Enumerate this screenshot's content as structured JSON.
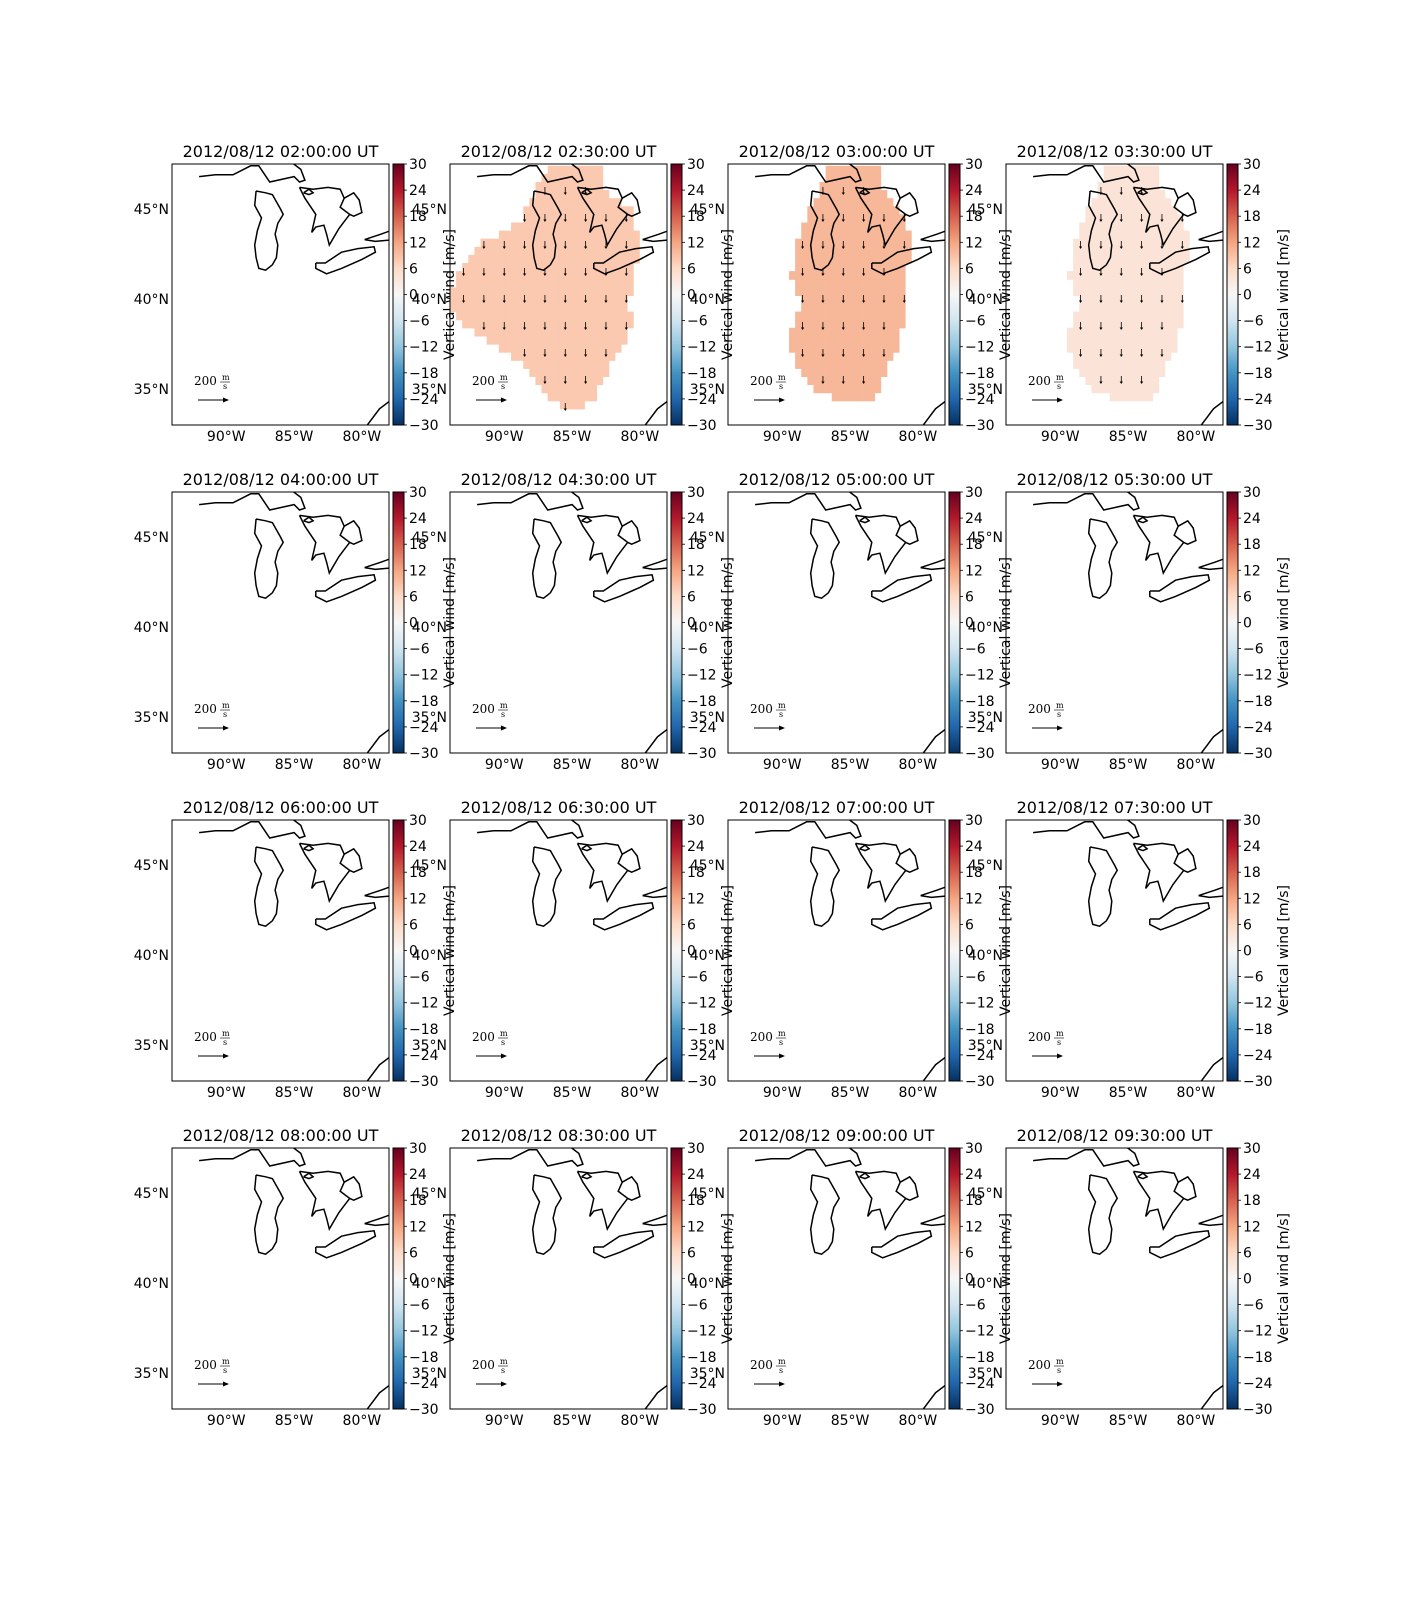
{
  "figure": {
    "colorbar_label": "Vertical wind [m/s]",
    "colorbar_ticks": [
      "30",
      "24",
      "18",
      "12",
      "6",
      "0",
      "−6",
      "−12",
      "−18",
      "−24",
      "−30"
    ],
    "lon_ticks": [
      "90°W",
      "85°W",
      "80°W"
    ],
    "lat_ticks": [
      "45°N",
      "40°N",
      "35°N"
    ],
    "quiver_key": {
      "value": "200",
      "unit_numerator": "m",
      "unit_denominator": "s"
    },
    "colormap": {
      "neg_end": "#053061",
      "mid": "#f7f7f7",
      "pos_end": "#67001f"
    },
    "vmin": -30,
    "vmax": 30
  },
  "chart_data": [
    {
      "type": "heatmap",
      "title": "2012/08/12 02:00:00 UT",
      "region": null,
      "value": null,
      "vertical_wind_arrows": false
    },
    {
      "type": "heatmap",
      "title": "2012/08/12 02:30:00 UT",
      "region": "large",
      "value": 8,
      "vertical_wind_arrows": true
    },
    {
      "type": "heatmap",
      "title": "2012/08/12 03:00:00 UT",
      "region": "medium",
      "value": 10,
      "vertical_wind_arrows": true
    },
    {
      "type": "heatmap",
      "title": "2012/08/12 03:30:00 UT",
      "region": "medium",
      "value": 4,
      "vertical_wind_arrows": true
    },
    {
      "type": "heatmap",
      "title": "2012/08/12 04:00:00 UT",
      "region": null,
      "value": null,
      "vertical_wind_arrows": false
    },
    {
      "type": "heatmap",
      "title": "2012/08/12 04:30:00 UT",
      "region": null,
      "value": null,
      "vertical_wind_arrows": false
    },
    {
      "type": "heatmap",
      "title": "2012/08/12 05:00:00 UT",
      "region": null,
      "value": null,
      "vertical_wind_arrows": false
    },
    {
      "type": "heatmap",
      "title": "2012/08/12 05:30:00 UT",
      "region": null,
      "value": null,
      "vertical_wind_arrows": false
    },
    {
      "type": "heatmap",
      "title": "2012/08/12 06:00:00 UT",
      "region": null,
      "value": null,
      "vertical_wind_arrows": false
    },
    {
      "type": "heatmap",
      "title": "2012/08/12 06:30:00 UT",
      "region": null,
      "value": null,
      "vertical_wind_arrows": false
    },
    {
      "type": "heatmap",
      "title": "2012/08/12 07:00:00 UT",
      "region": null,
      "value": null,
      "vertical_wind_arrows": false
    },
    {
      "type": "heatmap",
      "title": "2012/08/12 07:30:00 UT",
      "region": null,
      "value": null,
      "vertical_wind_arrows": false
    },
    {
      "type": "heatmap",
      "title": "2012/08/12 08:00:00 UT",
      "region": null,
      "value": null,
      "vertical_wind_arrows": false
    },
    {
      "type": "heatmap",
      "title": "2012/08/12 08:30:00 UT",
      "region": null,
      "value": null,
      "vertical_wind_arrows": false
    },
    {
      "type": "heatmap",
      "title": "2012/08/12 09:00:00 UT",
      "region": null,
      "value": null,
      "vertical_wind_arrows": false
    },
    {
      "type": "heatmap",
      "title": "2012/08/12 09:30:00 UT",
      "region": null,
      "value": null,
      "vertical_wind_arrows": false
    }
  ]
}
